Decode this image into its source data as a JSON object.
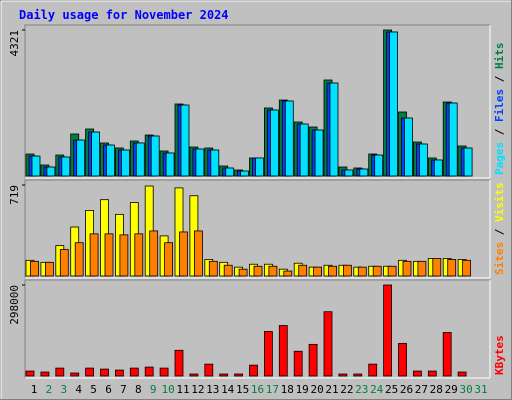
{
  "chart_data": [
    {
      "type": "bar",
      "title": "Daily usage for November 2024",
      "ylim": [
        0,
        4321
      ],
      "yticks": [
        4321
      ],
      "series": [
        {
          "name": "Hits",
          "color": "#008040",
          "values": [
            651,
            325,
            621,
            1243,
            1391,
            977,
            829,
            1036,
            1213,
            740,
            2131,
            858,
            829,
            296,
            178,
            533,
            2013,
            2249,
            1598,
            1450,
            2841,
            266,
            237,
            651,
            4321,
            1894,
            1006,
            533,
            2190,
            888,
            null
          ]
        },
        {
          "name": "Files",
          "color": "#0040FF",
          "values": [
            591,
            266,
            562,
            1065,
            1302,
            917,
            769,
            977,
            1184,
            681,
            2101,
            799,
            769,
            237,
            148,
            533,
            1953,
            2220,
            1539,
            1361,
            2752,
            178,
            207,
            621,
            4262,
            1716,
            947,
            474,
            2160,
            829,
            null
          ]
        },
        {
          "name": "Pages",
          "color": "#00E0FF",
          "values": [
            591,
            266,
            562,
            1065,
            1302,
            917,
            769,
            977,
            1184,
            681,
            2101,
            799,
            769,
            237,
            148,
            533,
            1953,
            2220,
            1539,
            1361,
            2752,
            178,
            207,
            621,
            4262,
            1716,
            947,
            474,
            2160,
            829,
            null
          ]
        }
      ]
    },
    {
      "type": "bar",
      "ylim": [
        0,
        719
      ],
      "yticks": [
        719
      ],
      "series": [
        {
          "name": "Visits",
          "color": "#FFFF00",
          "values": [
            124,
            108,
            240,
            387,
            518,
            603,
            487,
            580,
            711,
            317,
            696,
            634,
            131,
            108,
            70,
            93,
            93,
            54,
            101,
            70,
            85,
            85,
            70,
            77,
            77,
            124,
            116,
            139,
            139,
            131,
            null
          ]
        },
        {
          "name": "Sites",
          "color": "#FF8000",
          "values": [
            116,
            108,
            209,
            263,
            333,
            333,
            325,
            333,
            356,
            263,
            348,
            356,
            116,
            85,
            54,
            77,
            77,
            39,
            85,
            70,
            77,
            85,
            70,
            77,
            77,
            116,
            116,
            139,
            131,
            124,
            null
          ]
        }
      ]
    },
    {
      "type": "bar",
      "ylim": [
        0,
        298000
      ],
      "yticks": [
        298000
      ],
      "categories": [
        "1",
        "2",
        "3",
        "4",
        "5",
        "6",
        "7",
        "8",
        "9",
        "10",
        "11",
        "12",
        "13",
        "14",
        "15",
        "16",
        "17",
        "18",
        "19",
        "20",
        "21",
        "22",
        "23",
        "24",
        "25",
        "26",
        "27",
        "28",
        "29",
        "30",
        "31"
      ],
      "label_colors": [
        "#000000",
        "#008040",
        "#008040",
        "#000000",
        "#000000",
        "#000000",
        "#000000",
        "#000000",
        "#008040",
        "#008040",
        "#000000",
        "#000000",
        "#000000",
        "#000000",
        "#000000",
        "#008040",
        "#008040",
        "#000000",
        "#000000",
        "#000000",
        "#000000",
        "#000000",
        "#008040",
        "#008040",
        "#000000",
        "#000000",
        "#000000",
        "#000000",
        "#000000",
        "#008040",
        "#008040"
      ],
      "series": [
        {
          "name": "KBytes",
          "color": "#FF0000",
          "values": [
            16196,
            12957,
            25913,
            9717,
            25913,
            22674,
            19435,
            25913,
            29152,
            25913,
            84217,
            6478,
            38870,
            6478,
            6478,
            35630,
            145761,
            165196,
            80978,
            103652,
            210543,
            6478,
            6478,
            38870,
            298000,
            106891,
            16196,
            16196,
            142522,
            12957,
            null
          ]
        }
      ]
    }
  ]
}
